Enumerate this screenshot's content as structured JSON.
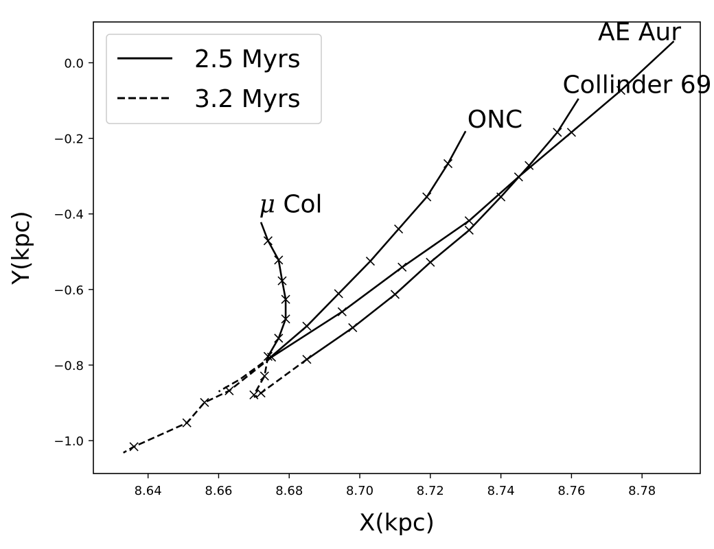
{
  "chart_data": {
    "type": "line",
    "xlabel": "X(kpc)",
    "ylabel": "Y(kpc)",
    "xlim": [
      8.6245,
      8.7965
    ],
    "ylim": [
      -1.087,
      0.108
    ],
    "xticks": [
      8.64,
      8.66,
      8.68,
      8.7,
      8.72,
      8.74,
      8.76,
      8.78
    ],
    "xtick_labels": [
      "8.64",
      "8.66",
      "8.68",
      "8.70",
      "8.72",
      "8.74",
      "8.76",
      "8.78"
    ],
    "yticks": [
      0.0,
      -0.2,
      -0.4,
      -0.6,
      -0.8,
      -1.0
    ],
    "ytick_labels": [
      "0.0",
      "−0.2",
      "−0.4",
      "−0.6",
      "−0.8",
      "−1.0"
    ],
    "grid": false,
    "legend": {
      "placement": "top-left",
      "entries": [
        {
          "label": "2.5 Myrs",
          "style": "solid"
        },
        {
          "label": "3.2 Myrs",
          "style": "dashed"
        }
      ]
    },
    "series": [
      {
        "name": "AE Aur",
        "label_text": "AE Aur",
        "solid": [
          [
            8.789,
            0.057
          ],
          [
            8.774,
            -0.073
          ],
          [
            8.76,
            -0.184
          ],
          [
            8.745,
            -0.302
          ],
          [
            8.731,
            -0.418
          ],
          [
            8.712,
            -0.541
          ],
          [
            8.695,
            -0.659
          ],
          [
            8.675,
            -0.779
          ]
        ],
        "dashed": [
          [
            8.675,
            -0.779
          ],
          [
            8.663,
            -0.868
          ],
          [
            8.656,
            -0.899
          ],
          [
            8.651,
            -0.953
          ],
          [
            8.636,
            -1.016
          ],
          [
            8.633,
            -1.032
          ]
        ],
        "markers": [
          [
            8.774,
            -0.073
          ],
          [
            8.76,
            -0.184
          ],
          [
            8.745,
            -0.302
          ],
          [
            8.731,
            -0.418
          ],
          [
            8.712,
            -0.541
          ],
          [
            8.695,
            -0.659
          ],
          [
            8.675,
            -0.779
          ],
          [
            8.663,
            -0.868
          ],
          [
            8.656,
            -0.899
          ],
          [
            8.651,
            -0.953
          ],
          [
            8.636,
            -1.016
          ]
        ]
      },
      {
        "name": "Collinder 69",
        "label_text": "Collinder 69",
        "solid": [
          [
            8.762,
            -0.095
          ],
          [
            8.756,
            -0.184
          ],
          [
            8.748,
            -0.272
          ],
          [
            8.74,
            -0.355
          ],
          [
            8.731,
            -0.443
          ],
          [
            8.72,
            -0.528
          ],
          [
            8.71,
            -0.613
          ],
          [
            8.698,
            -0.701
          ],
          [
            8.685,
            -0.785
          ]
        ],
        "dashed": [
          [
            8.685,
            -0.785
          ],
          [
            8.672,
            -0.874
          ],
          [
            8.67,
            -0.885
          ]
        ],
        "markers": [
          [
            8.756,
            -0.184
          ],
          [
            8.748,
            -0.272
          ],
          [
            8.74,
            -0.355
          ],
          [
            8.731,
            -0.443
          ],
          [
            8.72,
            -0.528
          ],
          [
            8.71,
            -0.613
          ],
          [
            8.698,
            -0.701
          ],
          [
            8.685,
            -0.785
          ],
          [
            8.672,
            -0.874
          ]
        ]
      },
      {
        "name": "ONC",
        "label_text": "ONC",
        "solid": [
          [
            8.73,
            -0.181
          ],
          [
            8.725,
            -0.267
          ],
          [
            8.719,
            -0.355
          ],
          [
            8.711,
            -0.44
          ],
          [
            8.703,
            -0.525
          ],
          [
            8.694,
            -0.611
          ],
          [
            8.685,
            -0.697
          ],
          [
            8.675,
            -0.777
          ]
        ],
        "dashed": [
          [
            8.675,
            -0.777
          ],
          [
            8.666,
            -0.838
          ],
          [
            8.66,
            -0.87
          ]
        ],
        "markers": [
          [
            8.725,
            -0.267
          ],
          [
            8.719,
            -0.355
          ],
          [
            8.711,
            -0.44
          ],
          [
            8.703,
            -0.525
          ],
          [
            8.694,
            -0.611
          ],
          [
            8.685,
            -0.697
          ]
        ]
      },
      {
        "name": "μ Col",
        "label_text": "μ Col",
        "solid": [
          [
            8.672,
            -0.422
          ],
          [
            8.674,
            -0.471
          ],
          [
            8.677,
            -0.522
          ],
          [
            8.678,
            -0.577
          ],
          [
            8.679,
            -0.626
          ],
          [
            8.679,
            -0.678
          ],
          [
            8.677,
            -0.729
          ],
          [
            8.674,
            -0.777
          ]
        ],
        "dashed": [
          [
            8.674,
            -0.777
          ],
          [
            8.673,
            -0.829
          ],
          [
            8.67,
            -0.879
          ]
        ],
        "markers": [
          [
            8.674,
            -0.471
          ],
          [
            8.677,
            -0.522
          ],
          [
            8.678,
            -0.577
          ],
          [
            8.679,
            -0.626
          ],
          [
            8.679,
            -0.678
          ],
          [
            8.677,
            -0.729
          ],
          [
            8.674,
            -0.777
          ],
          [
            8.673,
            -0.829
          ],
          [
            8.67,
            -0.879
          ]
        ]
      }
    ],
    "annotations": [
      {
        "text": "AE Aur",
        "x": 8.7675,
        "y": 0.06
      },
      {
        "text": "Collinder 69",
        "x": 8.7575,
        "y": -0.08
      },
      {
        "text": "ONC",
        "x": 8.7305,
        "y": -0.172
      },
      {
        "text": "μ Col",
        "x": 8.6715,
        "y": -0.396
      }
    ]
  }
}
